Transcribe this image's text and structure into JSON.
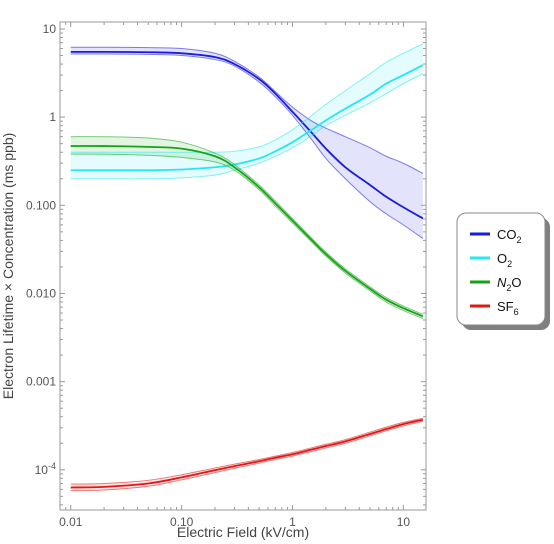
{
  "chart_data": {
    "type": "line",
    "title": "",
    "xlabel": "Electric Field (kV/cm)",
    "ylabel": "Electron Lifetime × Concentration (ms ppb)",
    "xscale": "log",
    "yscale": "log",
    "xlim": [
      0.008,
      16
    ],
    "ylim": [
      3.5e-05,
      12
    ],
    "grid": false,
    "legend_position": "right",
    "x_ticks": [
      {
        "value": 0.01,
        "label": "0.01"
      },
      {
        "value": 0.1,
        "label": "0.10"
      },
      {
        "value": 1,
        "label": "1"
      },
      {
        "value": 10,
        "label": "10"
      }
    ],
    "y_ticks": [
      {
        "value": 0.0001,
        "label": "10",
        "sup": "-4"
      },
      {
        "value": 0.001,
        "label": "0.001",
        "sup": ""
      },
      {
        "value": 0.01,
        "label": "0.010",
        "sup": ""
      },
      {
        "value": 0.1,
        "label": "0.100",
        "sup": ""
      },
      {
        "value": 1,
        "label": "1",
        "sup": ""
      },
      {
        "value": 10,
        "label": "10",
        "sup": ""
      }
    ],
    "x": [
      0.01,
      0.02,
      0.05,
      0.1,
      0.2,
      0.3,
      0.5,
      0.7,
      1,
      1.5,
      2,
      3,
      5,
      7,
      10,
      15
    ],
    "series": [
      {
        "name": "CO2",
        "label_main": "CO",
        "label_sub": "2",
        "label_italic": false,
        "color": "#1a1ae0",
        "values": [
          5.5,
          5.5,
          5.45,
          5.3,
          4.8,
          4.0,
          2.7,
          1.85,
          1.15,
          0.66,
          0.44,
          0.27,
          0.17,
          0.125,
          0.095,
          0.071
        ],
        "upper": [
          6.2,
          6.2,
          6.15,
          6.0,
          5.3,
          4.3,
          2.85,
          1.95,
          1.3,
          0.9,
          0.75,
          0.6,
          0.45,
          0.36,
          0.3,
          0.23
        ],
        "lower": [
          5.2,
          5.2,
          5.15,
          5.0,
          4.5,
          3.8,
          2.5,
          1.7,
          1.05,
          0.55,
          0.34,
          0.2,
          0.11,
          0.08,
          0.06,
          0.042
        ]
      },
      {
        "name": "O2",
        "label_main": "O",
        "label_sub": "2",
        "label_italic": false,
        "color": "#22e8f0",
        "values": [
          0.25,
          0.25,
          0.25,
          0.255,
          0.27,
          0.29,
          0.34,
          0.41,
          0.52,
          0.72,
          0.92,
          1.25,
          1.8,
          2.4,
          3.0,
          3.9
        ],
        "upper": [
          0.4,
          0.4,
          0.4,
          0.4,
          0.4,
          0.41,
          0.46,
          0.55,
          0.72,
          1.05,
          1.4,
          2.0,
          3.1,
          4.2,
          5.3,
          6.8
        ],
        "lower": [
          0.2,
          0.2,
          0.2,
          0.205,
          0.22,
          0.25,
          0.3,
          0.36,
          0.45,
          0.62,
          0.8,
          1.05,
          1.45,
          1.85,
          2.4,
          3.1
        ]
      },
      {
        "name": "N2O",
        "label_main": "N",
        "label_sub": "2",
        "label_tail": "O",
        "label_italic": true,
        "color": "#16a316",
        "values": [
          0.47,
          0.47,
          0.46,
          0.44,
          0.36,
          0.27,
          0.16,
          0.105,
          0.067,
          0.04,
          0.028,
          0.018,
          0.0113,
          0.0085,
          0.0068,
          0.0055
        ],
        "upper": [
          0.6,
          0.6,
          0.58,
          0.52,
          0.39,
          0.29,
          0.17,
          0.112,
          0.071,
          0.042,
          0.0295,
          0.019,
          0.0119,
          0.009,
          0.0072,
          0.0058
        ],
        "lower": [
          0.38,
          0.38,
          0.37,
          0.35,
          0.31,
          0.25,
          0.15,
          0.098,
          0.063,
          0.038,
          0.0265,
          0.017,
          0.0107,
          0.008,
          0.0064,
          0.0052
        ]
      },
      {
        "name": "SF6",
        "label_main": "SF",
        "label_sub": "6",
        "label_italic": false,
        "color": "#e01818",
        "values": [
          6.3e-05,
          6.4e-05,
          7e-05,
          8.2e-05,
          9.9e-05,
          0.00011,
          0.000125,
          0.000137,
          0.00015,
          0.00017,
          0.000186,
          0.00021,
          0.000255,
          0.00029,
          0.00033,
          0.00037
        ],
        "upper": [
          6.9e-05,
          7e-05,
          7.6e-05,
          8.8e-05,
          0.000105,
          0.000116,
          0.000131,
          0.000143,
          0.000157,
          0.000178,
          0.000195,
          0.00022,
          0.000268,
          0.000305,
          0.000345,
          0.000385
        ],
        "lower": [
          5.8e-05,
          5.9e-05,
          6.5e-05,
          7.7e-05,
          9.3e-05,
          0.000104,
          0.000119,
          0.000131,
          0.000143,
          0.000162,
          0.000177,
          0.0002,
          0.000243,
          0.000277,
          0.000315,
          0.000355
        ]
      }
    ]
  }
}
